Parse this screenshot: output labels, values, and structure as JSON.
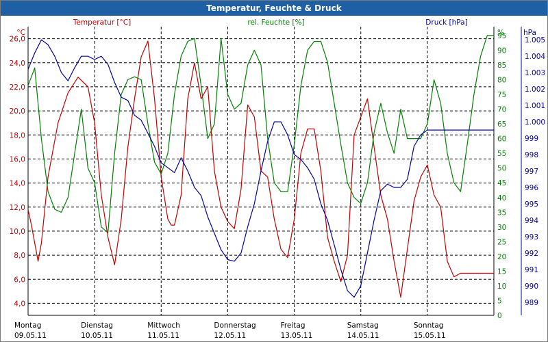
{
  "window": {
    "title": "Temperatur, Feuchte & Druck"
  },
  "colors": {
    "temperature": "#c00000",
    "humidity": "#008000",
    "pressure": "#0000a0",
    "grid": "#000000",
    "title_bar": "#1f5fa3"
  },
  "chart_data": {
    "type": "line",
    "title": "Temperatur, Feuchte & Druck",
    "grid": true,
    "x_labels": [
      {
        "day": "Montag",
        "date": "09.05.11"
      },
      {
        "day": "Dienstag",
        "date": "10.05.11"
      },
      {
        "day": "Mittwoch",
        "date": "11.05.11"
      },
      {
        "day": "Donnerstag",
        "date": "12.05.11"
      },
      {
        "day": "Freitag",
        "date": "13.05.11"
      },
      {
        "day": "Samstag",
        "date": "14.05.11"
      },
      {
        "day": "Sonntag",
        "date": "15.05.11"
      }
    ],
    "axes": {
      "temperature": {
        "unit": "°C",
        "label": "Temperatur [°C]",
        "ylim": [
          3.0,
          27.0
        ],
        "ticks": [
          "26,0",
          "24,0",
          "22,0",
          "20,0",
          "18,0",
          "16,0",
          "14,0",
          "12,0",
          "10,0",
          "8,0",
          "6,0",
          "4,0"
        ]
      },
      "humidity": {
        "unit": "%",
        "label": "rel. Feuchte [%]",
        "ylim": [
          0,
          98
        ],
        "ticks": [
          "95",
          "90",
          "85",
          "80",
          "75",
          "70",
          "65",
          "60",
          "55",
          "50",
          "45",
          "40",
          "35",
          "30",
          "25",
          "20",
          "15",
          "10",
          "5",
          "0"
        ]
      },
      "pressure": {
        "unit": "hPa",
        "label": "Druck [hPa]",
        "ylim": [
          988.2,
          1005.8
        ],
        "ticks": [
          "1.005",
          "1.004",
          "1.003",
          "1.002",
          "1.001",
          "1.000",
          "999",
          "998",
          "997",
          "996",
          "995",
          "994",
          "993",
          "992",
          "991",
          "990",
          "989"
        ]
      }
    },
    "series": [
      {
        "name": "Temperatur [°C]",
        "axis": "temperature",
        "x": [
          0,
          0.05,
          0.1,
          0.15,
          0.2,
          0.3,
          0.45,
          0.6,
          0.75,
          0.9,
          1.0,
          1.1,
          1.2,
          1.3,
          1.4,
          1.5,
          1.6,
          1.7,
          1.8,
          1.9,
          2.0,
          2.1,
          2.15,
          2.2,
          2.3,
          2.4,
          2.5,
          2.6,
          2.7,
          2.8,
          2.9,
          3.0,
          3.1,
          3.2,
          3.3,
          3.4,
          3.5,
          3.6,
          3.7,
          3.8,
          3.9,
          4.0,
          4.1,
          4.2,
          4.3,
          4.4,
          4.5,
          4.6,
          4.7,
          4.8,
          4.9,
          5.0,
          5.1,
          5.2,
          5.3,
          5.4,
          5.5,
          5.6,
          5.7,
          5.8,
          5.9,
          6.0,
          6.1,
          6.2,
          6.3,
          6.4,
          6.5,
          6.6,
          6.7,
          6.8,
          6.9,
          7.0
        ],
        "values": [
          11.8,
          10.5,
          9.0,
          7.5,
          9.0,
          14.5,
          19.0,
          21.5,
          22.8,
          22.0,
          19.0,
          13.0,
          9.5,
          7.2,
          11.0,
          17.0,
          21.0,
          24.5,
          25.8,
          21.0,
          14.5,
          11.0,
          10.5,
          10.5,
          13.0,
          21.0,
          24.0,
          21.0,
          22.0,
          15.0,
          12.0,
          10.8,
          10.2,
          13.5,
          20.5,
          19.5,
          15.0,
          14.5,
          11.0,
          8.5,
          7.8,
          11.0,
          16.5,
          18.5,
          18.5,
          15.0,
          9.5,
          7.5,
          5.8,
          8.0,
          18.0,
          19.5,
          21.0,
          17.0,
          13.0,
          11.0,
          7.5,
          4.5,
          8.5,
          12.5,
          14.5,
          15.5,
          13.0,
          12.0,
          7.5,
          6.2,
          6.5,
          6.5,
          6.5,
          6.5,
          6.5,
          6.5
        ]
      },
      {
        "name": "rel. Feuchte [%]",
        "axis": "humidity",
        "x": [
          0,
          0.1,
          0.2,
          0.3,
          0.4,
          0.5,
          0.6,
          0.7,
          0.8,
          0.9,
          1.0,
          1.1,
          1.2,
          1.3,
          1.4,
          1.5,
          1.6,
          1.7,
          1.8,
          1.9,
          2.0,
          2.1,
          2.2,
          2.3,
          2.4,
          2.5,
          2.6,
          2.7,
          2.8,
          2.9,
          3.0,
          3.1,
          3.2,
          3.3,
          3.4,
          3.5,
          3.6,
          3.7,
          3.8,
          3.9,
          4.0,
          4.1,
          4.2,
          4.3,
          4.4,
          4.5,
          4.6,
          4.7,
          4.8,
          4.9,
          5.0,
          5.1,
          5.2,
          5.3,
          5.4,
          5.5,
          5.6,
          5.7,
          5.8,
          5.9,
          6.0,
          6.1,
          6.2,
          6.3,
          6.4,
          6.5,
          6.6,
          6.7,
          6.8,
          6.9,
          7.0
        ],
        "values": [
          78,
          84,
          60,
          42,
          36,
          35,
          40,
          55,
          70,
          50,
          45,
          30,
          28,
          55,
          75,
          80,
          81,
          80,
          65,
          52,
          48,
          55,
          75,
          88,
          93,
          94,
          78,
          60,
          65,
          94,
          75,
          70,
          72,
          85,
          90,
          85,
          60,
          45,
          42,
          42,
          58,
          78,
          90,
          93,
          93,
          86,
          72,
          58,
          45,
          40,
          38,
          45,
          62,
          72,
          62,
          55,
          70,
          60,
          60,
          60,
          65,
          80,
          72,
          55,
          45,
          42,
          58,
          75,
          88,
          95,
          95
        ]
      },
      {
        "name": "Druck [hPa]",
        "axis": "pressure",
        "x": [
          0,
          0.1,
          0.2,
          0.3,
          0.4,
          0.5,
          0.6,
          0.7,
          0.8,
          0.9,
          1.0,
          1.1,
          1.2,
          1.3,
          1.4,
          1.5,
          1.6,
          1.7,
          1.8,
          1.9,
          2.0,
          2.1,
          2.2,
          2.3,
          2.4,
          2.5,
          2.6,
          2.7,
          2.8,
          2.9,
          3.0,
          3.1,
          3.2,
          3.3,
          3.4,
          3.5,
          3.6,
          3.7,
          3.8,
          3.9,
          4.0,
          4.1,
          4.2,
          4.3,
          4.4,
          4.5,
          4.6,
          4.7,
          4.8,
          4.9,
          5.0,
          5.1,
          5.2,
          5.3,
          5.4,
          5.5,
          5.6,
          5.7,
          5.8,
          5.9,
          6.0,
          6.1,
          6.2,
          6.3,
          6.4,
          6.5,
          6.6,
          6.7,
          6.8,
          6.9,
          7.0
        ],
        "values": [
          1003.2,
          1004.2,
          1005.0,
          1004.7,
          1004.0,
          1003.0,
          1002.5,
          1003.3,
          1004.0,
          1004.0,
          1003.8,
          1004.0,
          1003.5,
          1002.4,
          1001.5,
          1001.3,
          1000.4,
          1000.1,
          999.3,
          998.5,
          997.5,
          997.2,
          996.9,
          997.8,
          997.0,
          996.0,
          995.5,
          994.2,
          993.2,
          992.2,
          991.6,
          991.5,
          992.0,
          993.6,
          995.0,
          997.0,
          998.8,
          1000.0,
          1000.0,
          999.2,
          998.0,
          997.7,
          997.2,
          996.5,
          995.0,
          994.0,
          992.5,
          991.0,
          989.7,
          989.3,
          990.0,
          992.0,
          994.0,
          995.8,
          996.2,
          996.0,
          996.0,
          996.5,
          998.5,
          999.2,
          999.5,
          999.5,
          999.5,
          999.5,
          999.5,
          999.5,
          999.5,
          999.5,
          999.5,
          999.5,
          999.5
        ]
      }
    ]
  }
}
